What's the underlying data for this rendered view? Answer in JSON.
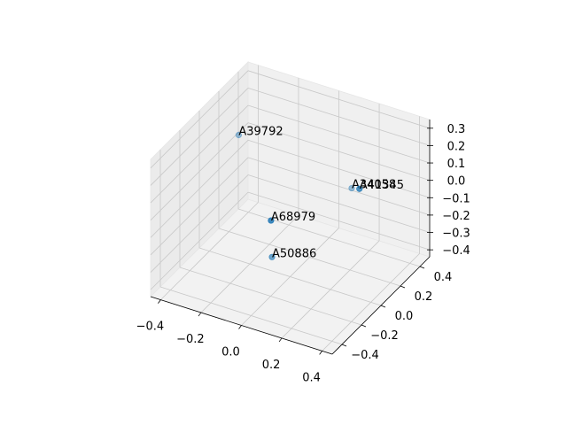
{
  "chart_data": {
    "type": "scatter",
    "projection": "3d",
    "x": [
      -0.4,
      0.05,
      -0.09,
      0.16,
      0.44
    ],
    "y": [
      0.3,
      -0.3,
      0.0,
      0.3,
      -0.2
    ],
    "z": [
      0.06,
      0.07,
      -0.36,
      -0.04,
      0.34
    ],
    "labels": [
      "A39792",
      "A68979",
      "A50886",
      "A34058",
      "A41345"
    ],
    "color": "#1f77b4",
    "depthshade": true,
    "grid": true,
    "xlim": [
      -0.45,
      0.45
    ],
    "ylim": [
      -0.5,
      0.5
    ],
    "zlim": [
      -0.44,
      0.35
    ],
    "xticks": [
      {
        "value": -0.4,
        "label": "−0.4"
      },
      {
        "value": -0.2,
        "label": "−0.2"
      },
      {
        "value": 0,
        "label": "0.0"
      },
      0.2,
      0.4
    ],
    "yticks": [
      {
        "value": -0.4,
        "label": "−0.4"
      },
      {
        "value": -0.2,
        "label": "−0.2"
      },
      {
        "value": 0,
        "label": "0.0"
      },
      0.2,
      0.4
    ],
    "zticks": [
      {
        "value": -0.4,
        "label": "−0.4"
      },
      {
        "value": -0.3,
        "label": "−0.3"
      },
      {
        "value": -0.2,
        "label": "−0.2"
      },
      {
        "value": -0.1,
        "label": "−0.1"
      },
      {
        "value": 0,
        "label": "0.0"
      },
      0.1,
      0.2,
      0.3
    ]
  }
}
